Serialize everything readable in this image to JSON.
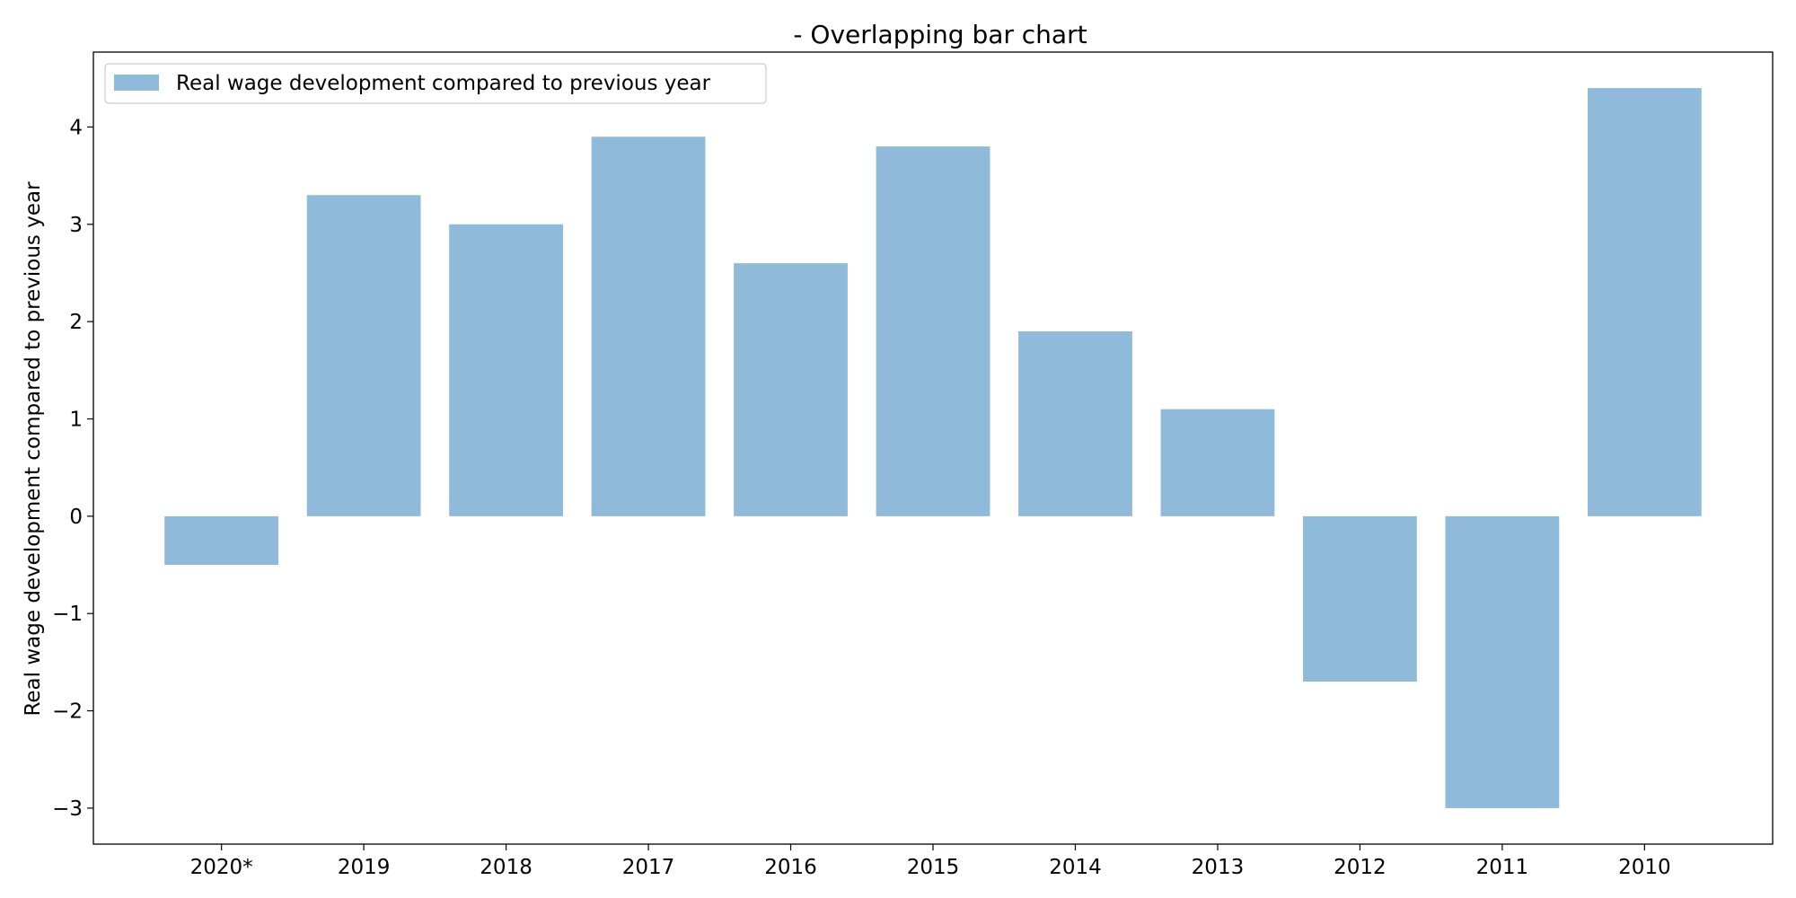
{
  "chart_data": {
    "type": "bar",
    "title": "- Overlapping bar chart",
    "xlabel": "",
    "ylabel": "Real wage development compared to previous year",
    "categories": [
      "2020*",
      "2019",
      "2018",
      "2017",
      "2016",
      "2015",
      "2014",
      "2013",
      "2012",
      "2011",
      "2010"
    ],
    "series": [
      {
        "name": "Real wage development compared to previous year",
        "values": [
          -0.5,
          3.3,
          3.0,
          3.9,
          2.6,
          3.8,
          1.9,
          1.1,
          -1.7,
          -3.0,
          4.4
        ],
        "color": "#8fbad9"
      }
    ],
    "ylim": [
      -3.37,
      4.77
    ],
    "yticks": [
      -3,
      -2,
      -1,
      0,
      1,
      2,
      3,
      4
    ],
    "ytick_labels": [
      "−3",
      "−2",
      "−1",
      "0",
      "1",
      "2",
      "3",
      "4"
    ],
    "grid": false,
    "legend_position": "top-left"
  }
}
